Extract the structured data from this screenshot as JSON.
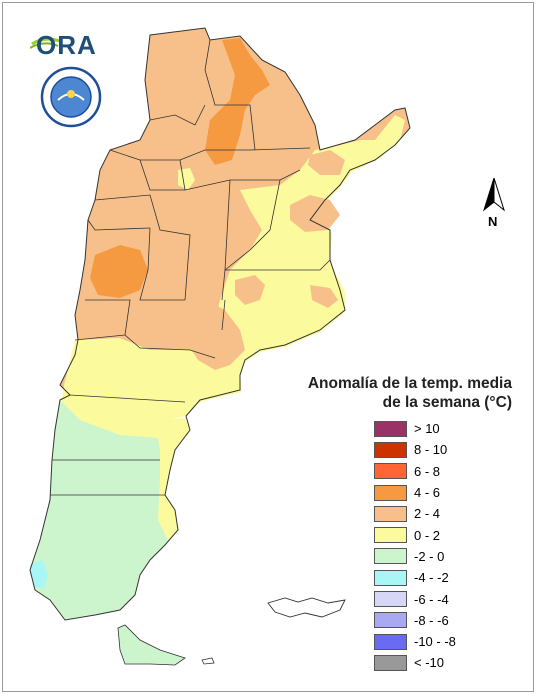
{
  "logos": {
    "ora_text": "ORA",
    "smn_alt": "Servicio Meteorológico Nacional Argentina"
  },
  "north_arrow": {
    "label": "N"
  },
  "legend": {
    "title_line1": "Anomalía de la temp. media",
    "title_line2": "de la semana (°C)",
    "items": [
      {
        "label": "> 10",
        "color": "#993366"
      },
      {
        "label": "8 - 10",
        "color": "#cc3300"
      },
      {
        "label": "6 - 8",
        "color": "#ff6633"
      },
      {
        "label": "4 - 6",
        "color": "#f59a40"
      },
      {
        "label": "2 - 4",
        "color": "#f7c08a"
      },
      {
        "label": "0 - 2",
        "color": "#fbfb9e"
      },
      {
        "label": "-2 - 0",
        "color": "#cdf5cd"
      },
      {
        "label": "-4 - -2",
        "color": "#a8f6f6"
      },
      {
        "label": "-6 - -4",
        "color": "#d6d6f6"
      },
      {
        "label": "-8 - -6",
        "color": "#a9a9f2"
      },
      {
        "label": "-10 - -8",
        "color": "#6a6af2"
      },
      {
        "label": "< -10",
        "color": "#999999"
      }
    ]
  },
  "map": {
    "region": "Argentina",
    "colors": {
      "zone_4_6": "#f59a40",
      "zone_2_4": "#f7c08a",
      "zone_0_2": "#fbfb9e",
      "zone_m2_0": "#cdf5cd",
      "zone_m4_m2": "#a8f6f6",
      "border": "#333333"
    }
  }
}
